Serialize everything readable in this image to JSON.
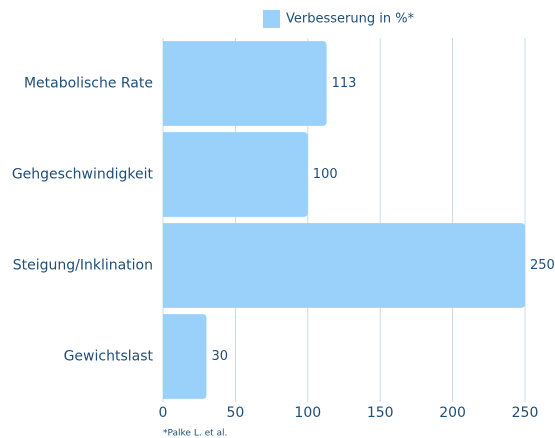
{
  "chart_data": {
    "type": "bar",
    "orientation": "horizontal",
    "categories": [
      "Metabolische Rate",
      "Gehgeschwindigkeit",
      "Steigung/Inklination",
      "Gewichtslast"
    ],
    "series": [
      {
        "name": "Verbesserung in %*",
        "color": "#99d1fb",
        "values": [
          113,
          100,
          250,
          30
        ]
      }
    ],
    "xlim": [
      0,
      250
    ],
    "xticks": [
      0,
      50,
      100,
      150,
      200,
      250
    ],
    "grid": true,
    "legend": "top",
    "footnote": "*Palke L. et al."
  }
}
